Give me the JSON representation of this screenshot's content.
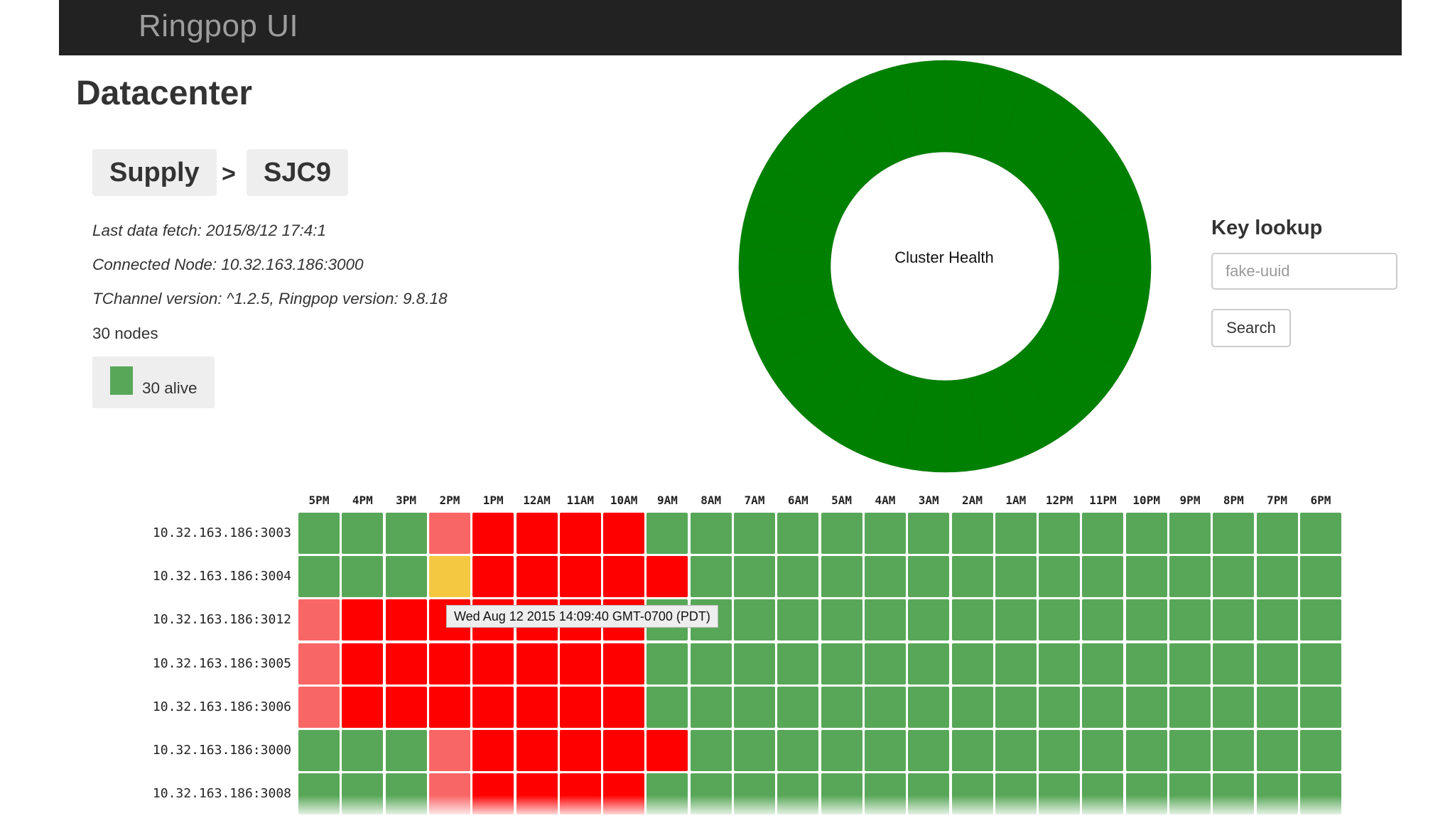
{
  "header": {
    "brand": "Ringpop UI"
  },
  "page": {
    "title": "Datacenter",
    "breadcrumb": [
      "Supply",
      "SJC9"
    ],
    "separator": ">",
    "last_fetch": "Last data fetch: 2015/8/12 17:4:1",
    "connected_node": "Connected Node: 10.32.163.186:3000",
    "versions": "TChannel version: ^1.2.5, Ringpop version: 9.8.18",
    "node_count": "30 nodes",
    "legend": {
      "label": "30 alive",
      "color": "#58a758"
    }
  },
  "cluster_health": {
    "label": "Cluster Health",
    "segments": 30,
    "alive": 30,
    "color": "#008000"
  },
  "key_lookup": {
    "title": "Key lookup",
    "placeholder": "fake-uuid",
    "button": "Search"
  },
  "heatmap": {
    "columns": [
      "5PM",
      "4PM",
      "3PM",
      "2PM",
      "1PM",
      "12AM",
      "11AM",
      "10AM",
      "9AM",
      "8AM",
      "7AM",
      "6AM",
      "5AM",
      "4AM",
      "3AM",
      "2AM",
      "1AM",
      "12PM",
      "11PM",
      "10PM",
      "9PM",
      "8PM",
      "7PM",
      "6PM"
    ],
    "colors": {
      "g": "#58a758",
      "r": "#ff0000",
      "p": "#f96666",
      "y": "#f5c842"
    },
    "rows": [
      {
        "label": "10.32.163.186:3003",
        "cells": "gggprrrrgggggggggggggggg"
      },
      {
        "label": "10.32.163.186:3004",
        "cells": "gggyrrrrrggggggggggggggg"
      },
      {
        "label": "10.32.163.186:3012",
        "cells": "prrrrrrrgggggggggggggggg"
      },
      {
        "label": "10.32.163.186:3005",
        "cells": "prrrrrrrgggggggggggggggg"
      },
      {
        "label": "10.32.163.186:3006",
        "cells": "prrrrrrrgggggggggggggggg"
      },
      {
        "label": "10.32.163.186:3000",
        "cells": "gggprrrrrggggggggggggggg"
      },
      {
        "label": "10.32.163.186:3008",
        "cells": "gggprrrrgggggggggggggggg"
      }
    ],
    "tooltip": "Wed Aug 12 2015 14:09:40 GMT-0700 (PDT)"
  }
}
